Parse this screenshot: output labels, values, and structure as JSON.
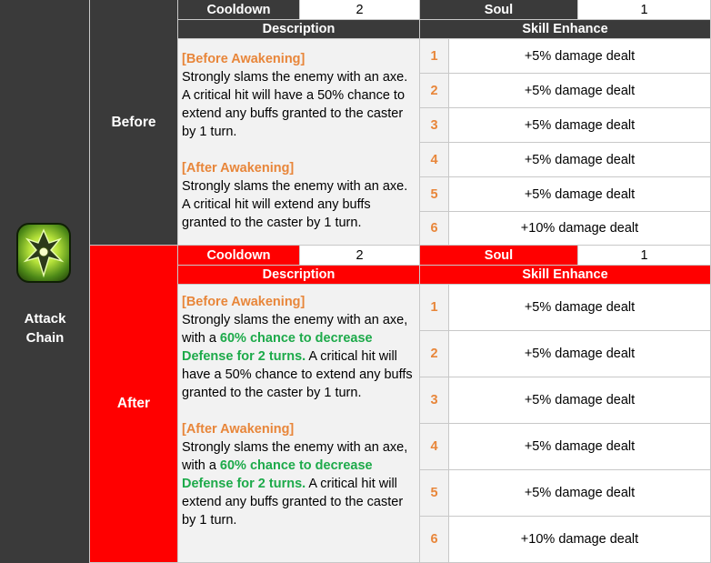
{
  "skill": {
    "name": "Attack Chain",
    "icon": "axe-chain-icon"
  },
  "labels": {
    "cooldown": "Cooldown",
    "soul": "Soul",
    "description": "Description",
    "skill_enhance": "Skill Enhance"
  },
  "before": {
    "label": "Before",
    "cooldown": "2",
    "soul": "1",
    "desc": {
      "before_awakening_heading": "[Before Awakening]",
      "before_awakening_text": "Strongly slams the enemy with an axe. A critical hit will have a 50% chance to extend any buffs granted to the caster by 1 turn.",
      "after_awakening_heading": "[After Awakening]",
      "after_awakening_text": "Strongly slams the enemy with an axe. A critical hit will extend any buffs granted to the caster by 1 turn."
    },
    "enhance": [
      {
        "n": "1",
        "text": "+5% damage dealt"
      },
      {
        "n": "2",
        "text": "+5% damage dealt"
      },
      {
        "n": "3",
        "text": "+5% damage dealt"
      },
      {
        "n": "4",
        "text": "+5% damage dealt"
      },
      {
        "n": "5",
        "text": "+5% damage dealt"
      },
      {
        "n": "6",
        "text": "+10% damage dealt"
      }
    ]
  },
  "after": {
    "label": "After",
    "cooldown": "2",
    "soul": "1",
    "desc": {
      "before_awakening_heading": "[Before Awakening]",
      "ba_text_1": "Strongly slams the enemy with an axe, with a",
      "ba_green": "60% chance to decrease Defense for 2 turns.",
      "ba_text_2": "A critical hit will have a 50% chance to extend any buffs granted to the caster by 1 turn.",
      "after_awakening_heading": "[After Awakening]",
      "aa_text_1": "Strongly slams the enemy with an axe, with a",
      "aa_green": "60% chance to decrease Defense for 2 turns.",
      "aa_text_2": "A critical hit will extend any buffs granted to the caster by 1 turn."
    },
    "enhance": [
      {
        "n": "1",
        "text": "+5% damage dealt"
      },
      {
        "n": "2",
        "text": "+5% damage dealt"
      },
      {
        "n": "3",
        "text": "+5% damage dealt"
      },
      {
        "n": "4",
        "text": "+5% damage dealt"
      },
      {
        "n": "5",
        "text": "+5% damage dealt"
      },
      {
        "n": "6",
        "text": "+10% damage dealt"
      }
    ]
  },
  "colors": {
    "dark": "#3a3a3a",
    "red": "#ff0000",
    "orange": "#e8863a",
    "green": "#1daa4a"
  }
}
